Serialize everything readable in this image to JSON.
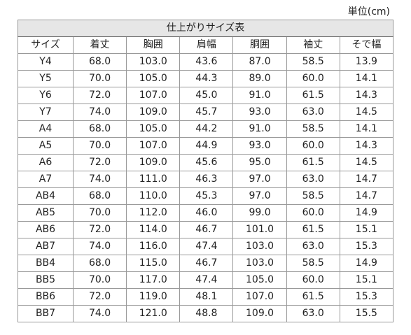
{
  "unit": "単位(cm)",
  "table": {
    "title": "仕上がりサイズ表",
    "header": [
      "サイズ",
      "着丈",
      "胸囲",
      "肩幅",
      "胴囲",
      "袖丈",
      "そで幅"
    ],
    "rows": [
      [
        "Y4",
        "68.0",
        "103.0",
        "43.6",
        "87.0",
        "58.5",
        "13.9"
      ],
      [
        "Y5",
        "70.0",
        "105.0",
        "44.3",
        "89.0",
        "60.0",
        "14.1"
      ],
      [
        "Y6",
        "72.0",
        "107.0",
        "45.0",
        "91.0",
        "61.5",
        "14.3"
      ],
      [
        "Y7",
        "74.0",
        "109.0",
        "45.7",
        "93.0",
        "63.0",
        "14.5"
      ],
      [
        "A4",
        "68.0",
        "105.0",
        "44.2",
        "91.0",
        "58.5",
        "14.1"
      ],
      [
        "A5",
        "70.0",
        "107.0",
        "44.9",
        "93.0",
        "60.0",
        "14.3"
      ],
      [
        "A6",
        "72.0",
        "109.0",
        "45.6",
        "95.0",
        "61.5",
        "14.5"
      ],
      [
        "A7",
        "74.0",
        "111.0",
        "46.3",
        "97.0",
        "63.0",
        "14.7"
      ],
      [
        "AB4",
        "68.0",
        "110.0",
        "45.3",
        "97.0",
        "58.5",
        "14.7"
      ],
      [
        "AB5",
        "70.0",
        "112.0",
        "46.0",
        "99.0",
        "60.0",
        "14.9"
      ],
      [
        "AB6",
        "72.0",
        "114.0",
        "46.7",
        "101.0",
        "61.5",
        "15.1"
      ],
      [
        "AB7",
        "74.0",
        "116.0",
        "47.4",
        "103.0",
        "63.0",
        "15.3"
      ],
      [
        "BB4",
        "68.0",
        "115.0",
        "46.7",
        "103.0",
        "58.5",
        "14.9"
      ],
      [
        "BB5",
        "70.0",
        "117.0",
        "47.4",
        "105.0",
        "60.0",
        "15.1"
      ],
      [
        "BB6",
        "72.0",
        "119.0",
        "48.1",
        "107.0",
        "61.5",
        "15.3"
      ],
      [
        "BB7",
        "74.0",
        "121.0",
        "48.8",
        "109.0",
        "63.0",
        "15.5"
      ]
    ]
  }
}
